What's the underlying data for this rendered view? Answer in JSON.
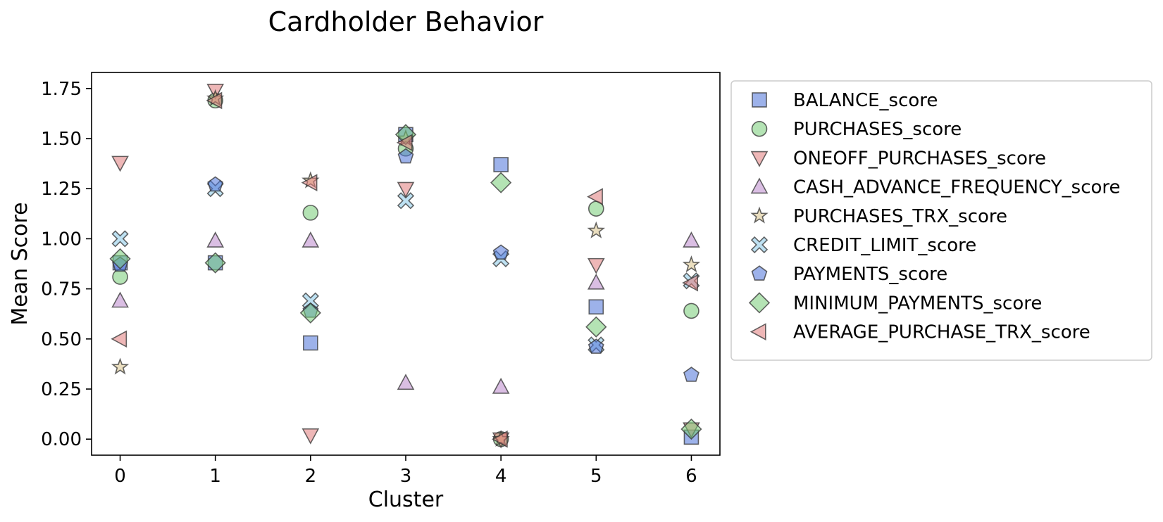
{
  "chart_data": {
    "type": "scatter",
    "title": "Cardholder Behavior",
    "xlabel": "Cluster",
    "ylabel": "Mean Score",
    "xlim": [
      -0.3,
      6.3
    ],
    "ylim": [
      -0.08,
      1.83
    ],
    "x_ticks": [
      0,
      1,
      2,
      3,
      4,
      5,
      6
    ],
    "x_tick_labels": [
      "0",
      "1",
      "2",
      "3",
      "4",
      "5",
      "6"
    ],
    "y_ticks": [
      0,
      0.25,
      0.5,
      0.75,
      1.0,
      1.25,
      1.5,
      1.75
    ],
    "y_tick_labels": [
      "0.00",
      "0.25",
      "0.50",
      "0.75",
      "1.00",
      "1.25",
      "1.50",
      "1.75"
    ],
    "grid": false,
    "legend_position": "outside-right",
    "x": [
      0,
      1,
      2,
      3,
      4,
      5,
      6
    ],
    "series": [
      {
        "name": "BALANCE_score",
        "marker": "square",
        "color": "#4c72d8",
        "values": [
          0.88,
          0.88,
          0.48,
          1.52,
          1.37,
          0.66,
          0.01
        ]
      },
      {
        "name": "PURCHASES_score",
        "marker": "circle",
        "color": "#77cc77",
        "values": [
          0.81,
          1.69,
          1.13,
          1.45,
          0.0,
          1.15,
          0.64
        ]
      },
      {
        "name": "ONEOFF_PURCHASES_score",
        "marker": "triangle-down",
        "color": "#e07b7b",
        "values": [
          1.38,
          1.74,
          0.02,
          1.25,
          0.0,
          0.87,
          0.05
        ]
      },
      {
        "name": "CASH_ADVANCE_FREQUENCY_score",
        "marker": "triangle-up",
        "color": "#bb88cc",
        "values": [
          0.69,
          0.99,
          0.99,
          0.28,
          0.26,
          0.78,
          0.99
        ]
      },
      {
        "name": "PURCHASES_TRX_score",
        "marker": "star",
        "color": "#d9c38b",
        "values": [
          0.36,
          1.7,
          1.29,
          1.5,
          0.0,
          1.04,
          0.87
        ]
      },
      {
        "name": "CREDIT_LIMIT_score",
        "marker": "x",
        "color": "#88c8e8",
        "values": [
          1.0,
          1.25,
          0.69,
          1.19,
          0.9,
          0.47,
          0.79
        ]
      },
      {
        "name": "PAYMENTS_score",
        "marker": "pentagon",
        "color": "#4c72d8",
        "values": [
          0.87,
          1.27,
          0.64,
          1.41,
          0.93,
          0.46,
          0.32
        ]
      },
      {
        "name": "MINIMUM_PAYMENTS_score",
        "marker": "diamond",
        "color": "#77cc77",
        "values": [
          0.9,
          0.88,
          0.63,
          1.52,
          1.28,
          0.56,
          0.05
        ]
      },
      {
        "name": "AVERAGE_PURCHASE_TRX_score",
        "marker": "triangle-left",
        "color": "#e07b7b",
        "values": [
          0.5,
          1.69,
          1.28,
          1.48,
          0.0,
          1.21,
          0.78
        ]
      }
    ]
  }
}
